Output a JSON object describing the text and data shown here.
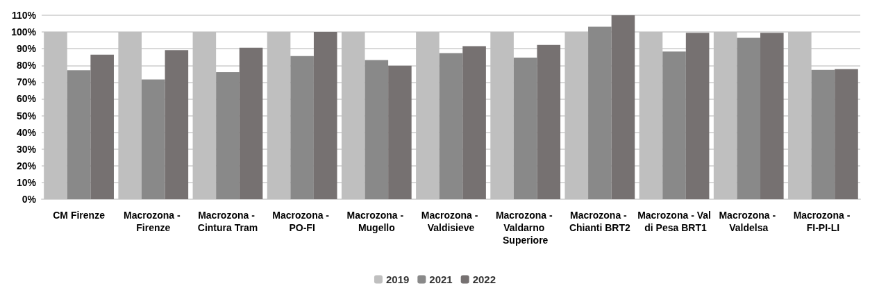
{
  "chart_data": {
    "type": "bar",
    "categories": [
      "CM Firenze",
      "Macrozona - Firenze",
      "Macrozona - Cintura Tram",
      "Macrozona - PO-FI",
      "Macrozona - Mugello",
      "Macrozona - Valdisieve",
      "Macrozona - Valdarno Superiore",
      "Macrozona - Chianti BRT2",
      "Macrozona - Val di Pesa BRT1",
      "Macrozona - Valdelsa",
      "Macrozona - FI-PI-LI"
    ],
    "series": [
      {
        "name": "2019",
        "color": "#bfbfbf",
        "values": [
          100,
          100,
          100,
          100,
          100,
          100,
          100,
          100,
          100,
          100,
          100
        ]
      },
      {
        "name": "2021",
        "color": "#898989",
        "values": [
          77.1,
          71.6,
          76,
          85.6,
          83.2,
          87.4,
          84.7,
          103.1,
          88.3,
          96.5,
          77.3
        ]
      },
      {
        "name": "2022",
        "color": "#767171",
        "values": [
          86.4,
          89.1,
          90.6,
          100,
          79.8,
          91.5,
          92.3,
          110,
          99.5,
          99.5,
          77.8
        ]
      }
    ],
    "ylim": [
      0,
      110
    ],
    "yticks": [
      {
        "value": 0,
        "label": "0%"
      },
      {
        "value": 10,
        "label": "10%"
      },
      {
        "value": 20,
        "label": "20%"
      },
      {
        "value": 30,
        "label": "30%"
      },
      {
        "value": 40,
        "label": "40%"
      },
      {
        "value": 50,
        "label": "50%"
      },
      {
        "value": 60,
        "label": "60%"
      },
      {
        "value": 70,
        "label": "70%"
      },
      {
        "value": 80,
        "label": "80%"
      },
      {
        "value": 90,
        "label": "90%"
      },
      {
        "value": 100,
        "label": "100%"
      },
      {
        "value": 110,
        "label": "110%"
      }
    ],
    "grid": "y",
    "legend": "bottom"
  }
}
